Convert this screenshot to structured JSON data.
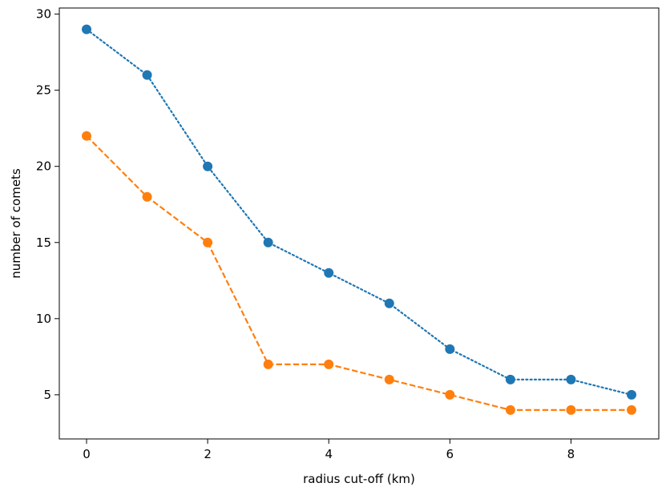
{
  "chart_data": {
    "type": "line",
    "title": "",
    "xlabel": "radius cut-off (km)",
    "ylabel": "number of comets",
    "xlim": [
      -0.45,
      9.45
    ],
    "ylim": [
      2.1,
      30.4
    ],
    "x_ticks": [
      0,
      2,
      4,
      6,
      8
    ],
    "y_ticks": [
      5,
      10,
      15,
      20,
      25,
      30
    ],
    "grid": false,
    "legend": "none",
    "x": [
      0,
      1,
      2,
      3,
      4,
      5,
      6,
      7,
      8,
      9
    ],
    "series": [
      {
        "values": [
          29,
          26,
          20,
          15,
          13,
          11,
          8,
          6,
          6,
          5
        ],
        "color": "#1f77b4",
        "linestyle": "dotted",
        "marker": "circle"
      },
      {
        "values": [
          22,
          18,
          15,
          7,
          7,
          6,
          5,
          4,
          4,
          4
        ],
        "color": "#ff7f0e",
        "linestyle": "dashed",
        "marker": "circle"
      }
    ]
  }
}
